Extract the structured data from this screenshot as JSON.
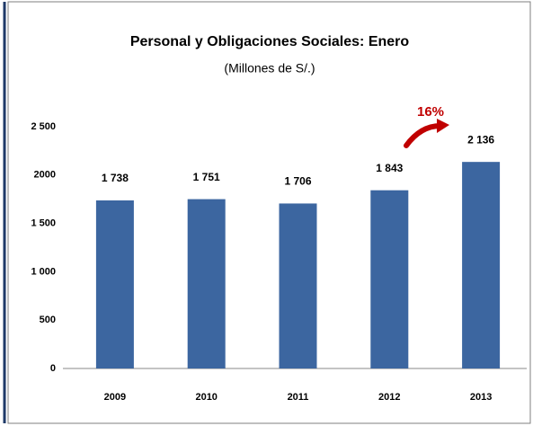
{
  "chart_data": {
    "type": "bar",
    "title": "Personal y Obligaciones Sociales: Enero",
    "subtitle": "(Millones de S/.)",
    "annotation": "16%",
    "categories": [
      "2009",
      "2010",
      "2011",
      "2012",
      "2013"
    ],
    "values": [
      1738,
      1751,
      1706,
      1843,
      2136
    ],
    "value_labels": [
      "1 738",
      "1 751",
      "1 706",
      "1 843",
      "2 136"
    ],
    "color": "#3c66a0",
    "ylim": [
      0,
      2500
    ],
    "yticks": [
      0,
      500,
      {
        "value": 1000,
        "label": "1 000"
      },
      {
        "value": 1500,
        "label": "1 500"
      },
      2000,
      {
        "value": 2500,
        "label": "2 500"
      }
    ],
    "grid": false
  }
}
